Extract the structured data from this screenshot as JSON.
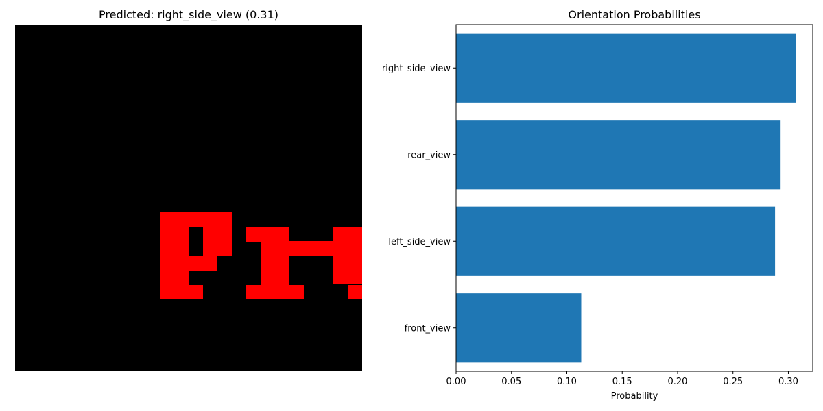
{
  "figure": {
    "left_title": "Predicted: right_side_view (0.31)",
    "image": {
      "description_icon": "pixel-letters-icon",
      "pixel_color": "#ff0000",
      "background_color": "#000000"
    }
  },
  "chart_data": {
    "type": "bar",
    "orientation": "horizontal",
    "title": "Orientation Probabilities",
    "xlabel": "Probability",
    "ylabel": "",
    "categories": [
      "right_side_view",
      "rear_view",
      "left_side_view",
      "front_view"
    ],
    "values": [
      0.307,
      0.293,
      0.288,
      0.113
    ],
    "xlim": [
      0,
      0.322
    ],
    "xticks": [
      0.0,
      0.05,
      0.1,
      0.15,
      0.2,
      0.25,
      0.3
    ],
    "xtick_labels": [
      "0.00",
      "0.05",
      "0.10",
      "0.15",
      "0.20",
      "0.25",
      "0.30"
    ],
    "grid": false,
    "bar_color": "#1f77b4"
  }
}
